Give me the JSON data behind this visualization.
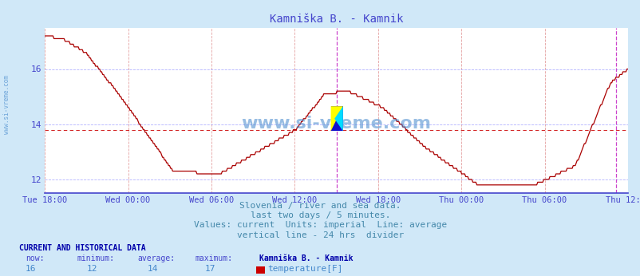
{
  "title": "Kamniška B. - Kamnik",
  "title_color": "#4444cc",
  "bg_color": "#d0e8f8",
  "plot_bg_color": "#ffffff",
  "line_color": "#aa0000",
  "average_line_value": 13.78,
  "average_line_color": "#cc0000",
  "y_min": 11.5,
  "y_max": 17.5,
  "yticks": [
    12,
    14,
    16
  ],
  "x_labels": [
    "Tue 18:00",
    "Wed 00:00",
    "Wed 06:00",
    "Wed 12:00",
    "Wed 18:00",
    "Thu 00:00",
    "Thu 06:00",
    "Thu 12:00"
  ],
  "x_label_color": "#4444cc",
  "y_label_color": "#4444cc",
  "vert_grid_color": "#dd8888",
  "horiz_grid_color": "#aaaaff",
  "vertical_line_color": "#cc44cc",
  "text_lines": [
    "Slovenia / river and sea data.",
    "last two days / 5 minutes.",
    "Values: current  Units: imperial  Line: average",
    "vertical line - 24 hrs  divider"
  ],
  "text_color": "#4488aa",
  "bottom_header_color": "#0000aa",
  "bottom_label_color": "#4444cc",
  "bottom_value_color": "#4488cc",
  "watermark": "www.si-vreme.com",
  "watermark_color": "#4488cc",
  "now": 16,
  "minimum": 12,
  "average": 14,
  "maximum": 17,
  "legend_label": "temperature[F]",
  "legend_color": "#cc0000",
  "total_points": 576,
  "vline_idx": 288,
  "vline2_idx": 563,
  "control_t": [
    0,
    0.03,
    0.07,
    0.13,
    0.22,
    0.3,
    0.43,
    0.48,
    0.52,
    0.58,
    0.65,
    0.74,
    0.84,
    0.91,
    0.97,
    1.0
  ],
  "control_y": [
    17.2,
    17.1,
    16.6,
    15.0,
    12.3,
    12.2,
    13.8,
    15.1,
    15.2,
    14.6,
    13.2,
    11.85,
    11.8,
    12.5,
    15.5,
    16.0
  ]
}
